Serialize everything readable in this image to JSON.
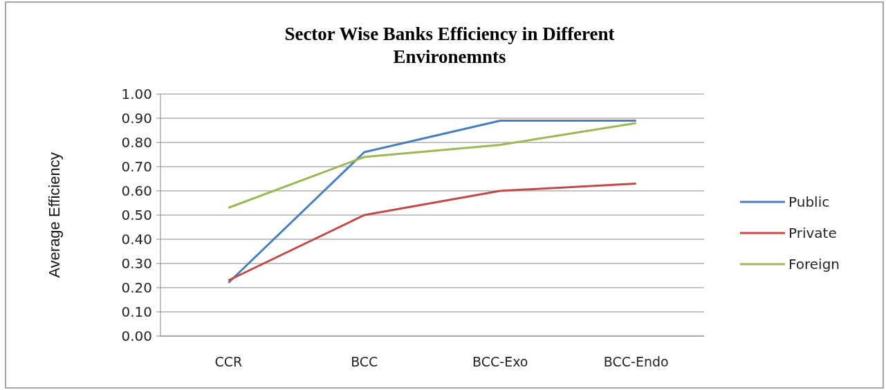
{
  "chart_data": {
    "type": "line",
    "title": "Sector Wise Banks Efficiency in Different Environemnts",
    "ylabel": "Average Efficiency",
    "categories": [
      "CCR",
      "BCC",
      "BCC-Exo",
      "BCC-Endo"
    ],
    "series": [
      {
        "name": "Public",
        "color": "#4a7ebb",
        "values": [
          0.22,
          0.76,
          0.89,
          0.89
        ]
      },
      {
        "name": "Private",
        "color": "#be4b48",
        "values": [
          0.23,
          0.5,
          0.6,
          0.63
        ]
      },
      {
        "name": "Foreign",
        "color": "#98b954",
        "values": [
          0.53,
          0.74,
          0.79,
          0.88
        ]
      }
    ],
    "ylim": [
      0,
      1
    ],
    "yticks": [
      {
        "value": 0,
        "label": "0.00"
      },
      {
        "value": 0.1,
        "label": "0.10"
      },
      {
        "value": 0.2,
        "label": "0.20"
      },
      {
        "value": 0.3,
        "label": "0.30"
      },
      {
        "value": 0.4,
        "label": "0.40"
      },
      {
        "value": 0.5,
        "label": "0.50"
      },
      {
        "value": 0.6,
        "label": "0.60"
      },
      {
        "value": 0.7,
        "label": "0.70"
      },
      {
        "value": 0.8,
        "label": "0.80"
      },
      {
        "value": 0.9,
        "label": "0.90"
      },
      {
        "value": 1,
        "label": "1.00"
      }
    ],
    "grid": "y",
    "legend": "right",
    "marker": "none",
    "line_style": "solid"
  }
}
